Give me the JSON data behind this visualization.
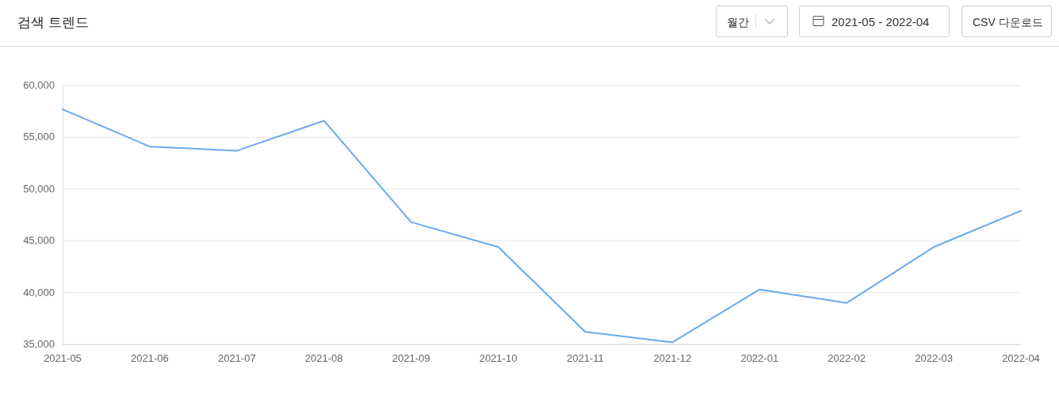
{
  "chart_data": {
    "type": "line",
    "title": "검색 트렌드",
    "annotations": [
      "월간",
      "2021-05 - 2022-04",
      "CSV 다운로드"
    ],
    "categories": [
      "2021-05",
      "2021-06",
      "2021-07",
      "2021-08",
      "2021-09",
      "2021-10",
      "2021-11",
      "2021-12",
      "2022-01",
      "2022-02",
      "2022-03",
      "2022-04"
    ],
    "series": [
      {
        "color": "#6aa9f0",
        "values": [
          57700,
          54100,
          53700,
          56600,
          46800,
          44400,
          36200,
          35200,
          40300,
          39000,
          44400,
          47900
        ]
      }
    ],
    "ylim": [
      35000,
      60000
    ],
    "yticks": [
      {
        "value": 35000,
        "label": "35,000"
      },
      {
        "value": 40000,
        "label": "40,000"
      },
      {
        "value": 45000,
        "label": "45,000"
      },
      {
        "value": 50000,
        "label": "50,000"
      },
      {
        "value": 55000,
        "label": "55,000"
      },
      {
        "value": 60000,
        "label": "60,000"
      }
    ],
    "grid": "y",
    "marker": "none",
    "line_style": "solid"
  }
}
